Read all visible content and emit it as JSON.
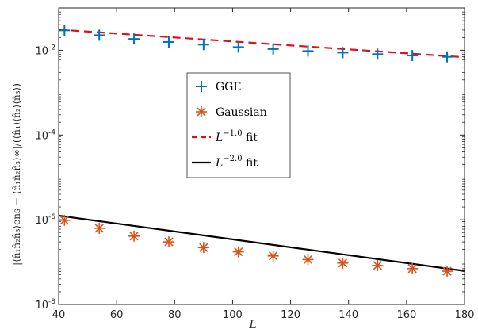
{
  "chart_data": {
    "type": "scatter",
    "x_scale": "linear",
    "y_scale": "log",
    "xlim": [
      40,
      180
    ],
    "ylim": [
      1e-08,
      0.1
    ],
    "xticks": [
      40,
      60,
      80,
      100,
      120,
      140,
      160,
      180
    ],
    "xtick_labels": [
      "40",
      "60",
      "80",
      "100",
      "120",
      "140",
      "160",
      "180"
    ],
    "yticks": [
      1e-08,
      1e-06,
      0.0001,
      0.01
    ],
    "ytick_labels": [
      {
        "base": "10",
        "exp": "-8"
      },
      {
        "base": "10",
        "exp": "-6"
      },
      {
        "base": "10",
        "exp": "-4"
      },
      {
        "base": "10",
        "exp": "-2"
      }
    ],
    "xlabel": "L",
    "ylabel": "|⟨n̂₁n̂₂n̂₃⟩ens − ⟨n̂₁n̂₂n̂₃⟩∞|/(⟨n̂₁⟩⟨n̂₂⟩⟨n̂₃⟩)",
    "grid": false,
    "legend_position": "center-left",
    "series": [
      {
        "name": "GGE",
        "kind": "marker",
        "marker": "plus",
        "color": "#0072BD",
        "x": [
          42,
          54,
          66,
          78,
          90,
          102,
          114,
          126,
          138,
          150,
          162,
          174
        ],
        "y": [
          0.0295,
          0.0227,
          0.0185,
          0.0157,
          0.0136,
          0.0119,
          0.0107,
          0.0096,
          0.0088,
          0.0081,
          0.0075,
          0.007
        ]
      },
      {
        "name": "Gaussian",
        "kind": "marker",
        "marker": "asterisk",
        "color": "#D95319",
        "x": [
          42,
          54,
          66,
          78,
          90,
          102,
          114,
          126,
          138,
          150,
          162,
          174
        ],
        "y": [
          9.7e-07,
          6.3e-07,
          4.1e-07,
          3e-07,
          2.2e-07,
          1.75e-07,
          1.4e-07,
          1.15e-07,
          9.5e-08,
          8.3e-08,
          7e-08,
          6.1e-08
        ]
      },
      {
        "name": "L^{-1.0} fit",
        "label_base": "L",
        "label_exp": "−1.0",
        "label_tail": " fit",
        "kind": "line",
        "dash": "dashed",
        "color": "#E0101A",
        "x": [
          40,
          180
        ],
        "y": [
          0.0308,
          0.00684
        ]
      },
      {
        "name": "L^{-2.0} fit",
        "label_base": "L",
        "label_exp": "−2.0",
        "label_tail": " fit",
        "kind": "line",
        "dash": "solid",
        "color": "#000000",
        "x": [
          40,
          180
        ],
        "y": [
          1.25e-06,
          6.17e-08
        ]
      }
    ]
  }
}
